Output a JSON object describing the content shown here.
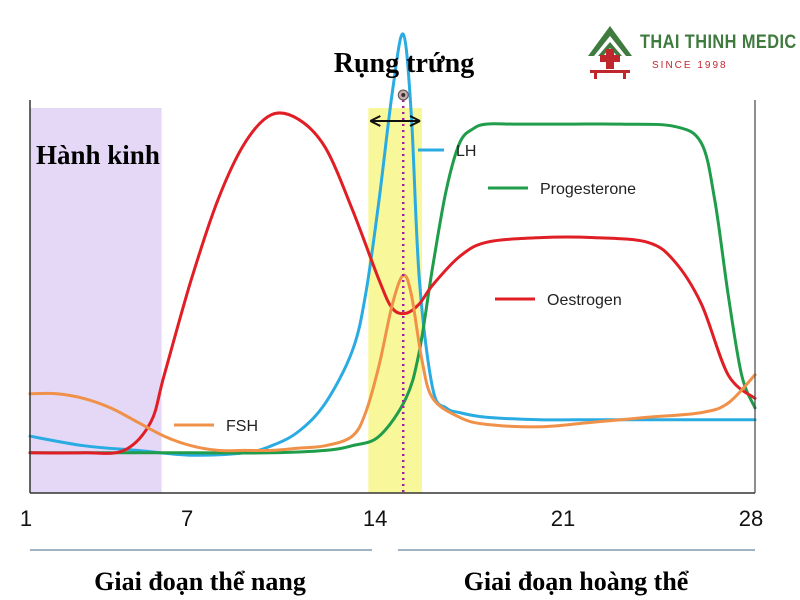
{
  "logo": {
    "name": "THAI THINH MEDIC",
    "since": "SINCE 1998",
    "colors": {
      "green": "#3f7a3f",
      "red": "#c0272d"
    }
  },
  "annotations": {
    "ovulation": "Rụng trứng",
    "menstruation": "Hành kinh",
    "follicular_phase": "Giai đoạn thể nang",
    "luteal_phase": "Giai đoạn hoàng thể"
  },
  "chart_data": {
    "type": "line",
    "title": "",
    "xlabel": "",
    "ylabel": "",
    "xlim": [
      1,
      28
    ],
    "ylim": [
      0,
      1
    ],
    "xticks": [
      1,
      7,
      14,
      21,
      28
    ],
    "grid": false,
    "menstruation_days": [
      1,
      5.9
    ],
    "ovulation_window": [
      13.6,
      15.6
    ],
    "ovulation_day": 14.9,
    "series": [
      {
        "name": "LH",
        "color": "#2aabe2",
        "x": [
          1,
          3,
          5,
          7,
          9,
          10,
          11,
          12,
          13,
          13.5,
          14,
          14.5,
          14.9,
          15.2,
          15.5,
          16,
          16.5,
          17,
          18,
          20,
          22,
          24,
          26,
          28
        ],
        "y": [
          0.12,
          0.1,
          0.09,
          0.08,
          0.085,
          0.1,
          0.13,
          0.19,
          0.3,
          0.42,
          0.62,
          0.85,
          0.97,
          0.8,
          0.45,
          0.22,
          0.18,
          0.17,
          0.16,
          0.155,
          0.155,
          0.155,
          0.155,
          0.155
        ]
      },
      {
        "name": "Progesterone",
        "color": "#1f9d4a",
        "x": [
          1,
          4,
          7,
          10,
          12,
          13,
          14,
          15,
          15.5,
          16,
          16.5,
          17,
          17.5,
          18,
          19,
          21,
          23,
          25,
          26,
          26.5,
          27,
          27.5,
          28
        ],
        "y": [
          0.085,
          0.085,
          0.085,
          0.085,
          0.09,
          0.1,
          0.12,
          0.2,
          0.3,
          0.48,
          0.64,
          0.74,
          0.77,
          0.78,
          0.78,
          0.78,
          0.78,
          0.775,
          0.74,
          0.62,
          0.42,
          0.25,
          0.18
        ]
      },
      {
        "name": "Oestrogen",
        "color": "#e01e25",
        "x": [
          1,
          3,
          4.5,
          5.5,
          6,
          7,
          8,
          9,
          10,
          11,
          12,
          13,
          14,
          14.5,
          15,
          15.5,
          16,
          17,
          18,
          20,
          22,
          24,
          25,
          26,
          27,
          28
        ],
        "y": [
          0.085,
          0.085,
          0.09,
          0.15,
          0.25,
          0.45,
          0.62,
          0.74,
          0.8,
          0.79,
          0.73,
          0.6,
          0.45,
          0.39,
          0.38,
          0.4,
          0.44,
          0.5,
          0.53,
          0.54,
          0.54,
          0.53,
          0.49,
          0.4,
          0.25,
          0.2
        ]
      },
      {
        "name": "FSH",
        "color": "#f0914a",
        "x": [
          1,
          2,
          3,
          4,
          5,
          6,
          7,
          8,
          9,
          10,
          11,
          12,
          13,
          13.5,
          14,
          14.5,
          14.9,
          15.2,
          15.6,
          16,
          17,
          18,
          20,
          22,
          24,
          26,
          27,
          28
        ],
        "y": [
          0.21,
          0.21,
          0.2,
          0.18,
          0.15,
          0.12,
          0.1,
          0.09,
          0.09,
          0.09,
          0.095,
          0.1,
          0.12,
          0.17,
          0.27,
          0.4,
          0.46,
          0.42,
          0.28,
          0.2,
          0.16,
          0.145,
          0.14,
          0.15,
          0.16,
          0.17,
          0.19,
          0.25
        ]
      }
    ]
  }
}
